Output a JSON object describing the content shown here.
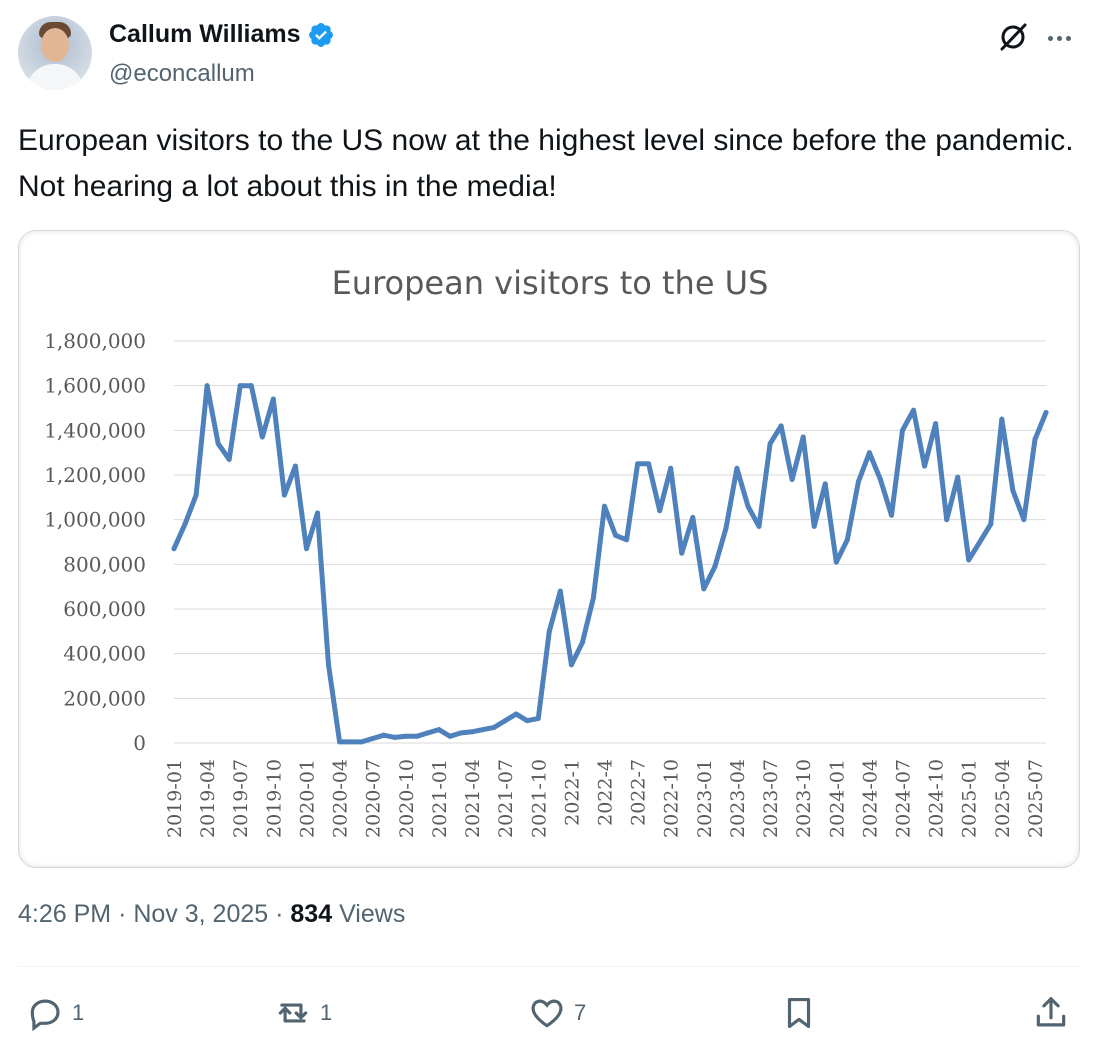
{
  "author": {
    "name": "Callum Williams",
    "handle": "@econcallum",
    "verified": true,
    "avatar_icon": "profile-photo"
  },
  "header_icons": [
    "grok-icon",
    "more-icon"
  ],
  "tweet": {
    "text": "European visitors to the US now at the highest level since before the pandemic. Not hearing a lot about this in the media!"
  },
  "meta": {
    "time": "4:26 PM",
    "date": "Nov 3, 2025",
    "views_count": "834",
    "views_label": "Views",
    "separator": "·"
  },
  "actions": {
    "replies": "1",
    "reposts": "1",
    "likes": "7",
    "icons": [
      "reply-icon",
      "repost-icon",
      "like-icon",
      "bookmark-icon",
      "share-icon"
    ]
  },
  "colors": {
    "line": "#4f81bd",
    "secondary_text": "#536471",
    "verified_badge": "#1d9bf0"
  },
  "chart_data": {
    "type": "line",
    "title": "European visitors to the US",
    "xlabel": "",
    "ylabel": "",
    "ylim": [
      0,
      1800000
    ],
    "yticks": [
      "0",
      "200,000",
      "400,000",
      "600,000",
      "800,000",
      "1,000,000",
      "1,200,000",
      "1,400,000",
      "1,600,000",
      "1,800,000"
    ],
    "grid": true,
    "legend": "none",
    "x_tick_labels": [
      "2019-01",
      "2019-04",
      "2019-07",
      "2019-10",
      "2020-01",
      "2020-04",
      "2020-07",
      "2020-10",
      "2021-01",
      "2021-04",
      "2021-07",
      "2021-10",
      "2022-1",
      "2022-4",
      "2022-7",
      "2022-10",
      "2023-01",
      "2023-04",
      "2023-07",
      "2023-10",
      "2024-01",
      "2024-04",
      "2024-07",
      "2024-10",
      "2025-01",
      "2025-04",
      "2025-07"
    ],
    "series": [
      {
        "values": [
          870000,
          980000,
          1110000,
          1600000,
          1340000,
          1270000,
          1600000,
          1600000,
          1370000,
          1540000,
          1110000,
          1240000,
          870000,
          1030000,
          350000,
          5000,
          5000,
          5000,
          20000,
          35000,
          25000,
          30000,
          30000,
          45000,
          60000,
          30000,
          45000,
          50000,
          60000,
          70000,
          100000,
          130000,
          100000,
          110000,
          500000,
          680000,
          350000,
          450000,
          650000,
          1060000,
          930000,
          910000,
          1250000,
          1250000,
          1040000,
          1230000,
          850000,
          1010000,
          690000,
          790000,
          960000,
          1230000,
          1060000,
          970000,
          1340000,
          1420000,
          1180000,
          1370000,
          970000,
          1160000,
          810000,
          910000,
          1170000,
          1300000,
          1180000,
          1020000,
          1400000,
          1490000,
          1240000,
          1430000,
          1000000,
          1190000,
          820000,
          900000,
          980000,
          1450000,
          1130000,
          1000000,
          1360000,
          1480000
        ]
      }
    ]
  }
}
